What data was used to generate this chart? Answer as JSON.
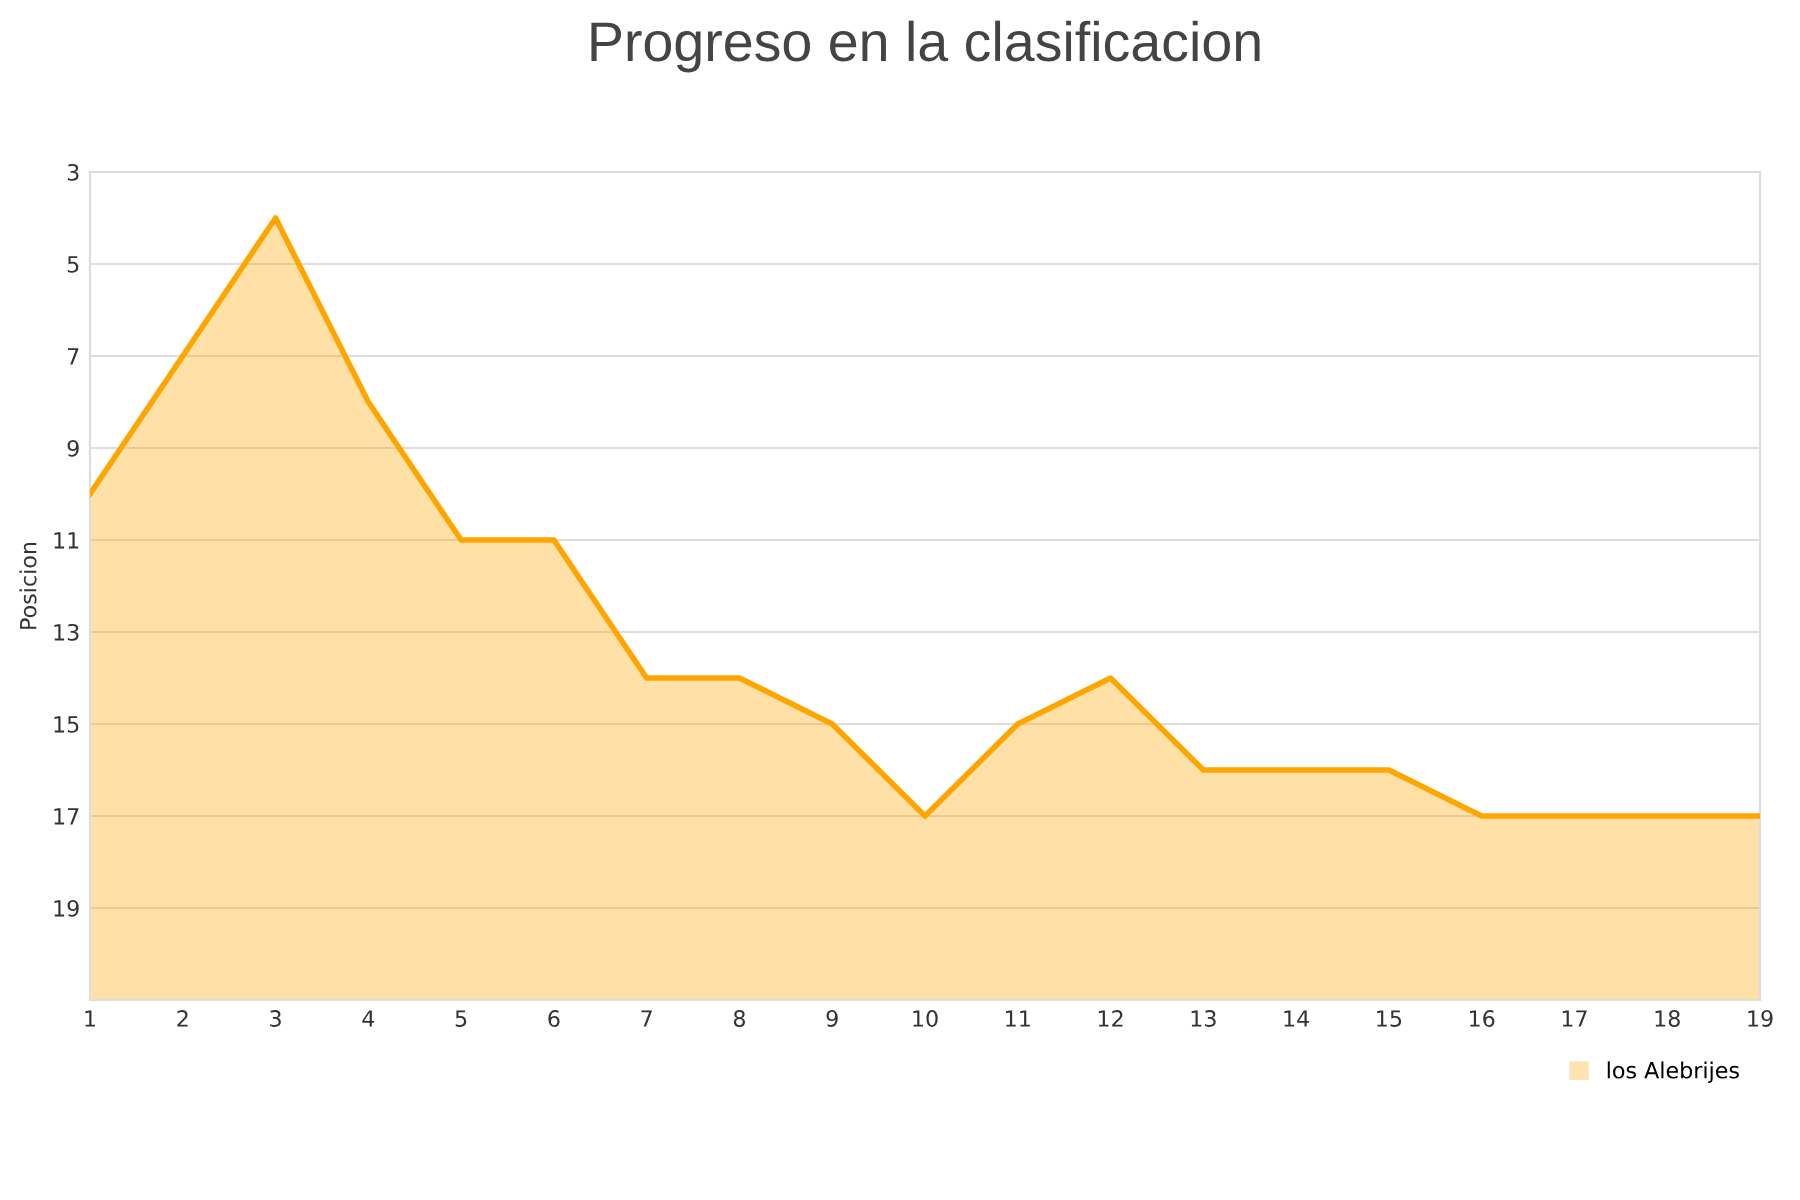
{
  "chart_data": {
    "type": "area",
    "title": "Progreso en la clasificacion",
    "ylabel": "Posicion",
    "x": [
      1,
      2,
      3,
      4,
      5,
      6,
      7,
      8,
      9,
      10,
      11,
      12,
      13,
      14,
      15,
      16,
      17,
      18,
      19
    ],
    "series": [
      {
        "name": "los Alebrijes",
        "color": "#ffa500",
        "values": [
          10,
          7,
          4,
          8,
          11,
          11,
          14,
          14,
          15,
          17,
          15,
          14,
          16,
          16,
          16,
          17,
          17,
          17,
          17
        ]
      }
    ],
    "xlim": [
      1,
      19
    ],
    "xticks": [
      1,
      2,
      3,
      4,
      5,
      6,
      7,
      8,
      9,
      10,
      11,
      12,
      13,
      14,
      15,
      16,
      17,
      18,
      19
    ],
    "ylim": [
      21,
      3
    ],
    "yticks": [
      3,
      5,
      7,
      9,
      11,
      13,
      15,
      17,
      19
    ],
    "grid": "y",
    "legend": "bottom right",
    "marker": "none",
    "line_style": "solid"
  }
}
